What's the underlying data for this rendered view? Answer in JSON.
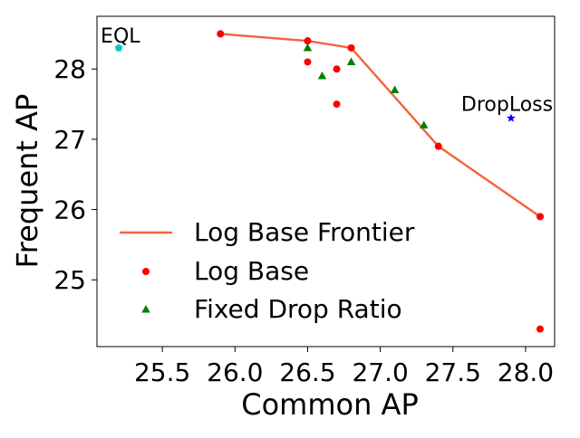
{
  "chart_data": {
    "type": "scatter",
    "xlabel": "Common AP",
    "ylabel": "Frequent AP",
    "xlim": [
      25.05,
      28.2
    ],
    "ylim": [
      24.05,
      28.75
    ],
    "xticks": [
      25.5,
      26.0,
      26.5,
      27.0,
      27.5,
      28.0
    ],
    "xtick_labels": [
      "25.5",
      "26.0",
      "26.5",
      "27.0",
      "27.5",
      "28.0"
    ],
    "yticks": [
      25,
      26,
      27,
      28
    ],
    "ytick_labels": [
      "25",
      "26",
      "27",
      "28"
    ],
    "grid": false,
    "legend_position": "lower-left",
    "series": [
      {
        "name": "Log Base Frontier",
        "kind": "line",
        "color": "#f4623a",
        "points": [
          [
            25.9,
            28.5
          ],
          [
            26.5,
            28.4
          ],
          [
            26.8,
            28.3
          ],
          [
            27.4,
            26.9
          ],
          [
            28.1,
            25.9
          ]
        ]
      },
      {
        "name": "Log Base",
        "kind": "circle",
        "color": "#ff0000",
        "points": [
          [
            25.9,
            28.5
          ],
          [
            26.5,
            28.4
          ],
          [
            26.5,
            28.1
          ],
          [
            26.7,
            28.0
          ],
          [
            26.7,
            27.5
          ],
          [
            26.8,
            28.3
          ],
          [
            27.4,
            26.9
          ],
          [
            28.1,
            25.9
          ],
          [
            28.1,
            24.3
          ]
        ]
      },
      {
        "name": "Fixed Drop Ratio",
        "kind": "triangle",
        "color": "#008000",
        "points": [
          [
            26.5,
            28.3
          ],
          [
            26.6,
            27.9
          ],
          [
            26.8,
            28.1
          ],
          [
            27.1,
            27.7
          ],
          [
            27.3,
            27.2
          ]
        ]
      }
    ],
    "annotations": [
      {
        "text": "EQL",
        "x": 25.2,
        "y": 28.3,
        "marker": "pentagon",
        "color": "#00cccc"
      },
      {
        "text": "DropLoss",
        "x": 27.9,
        "y": 27.3,
        "marker": "star",
        "color": "#0000ff"
      }
    ]
  }
}
